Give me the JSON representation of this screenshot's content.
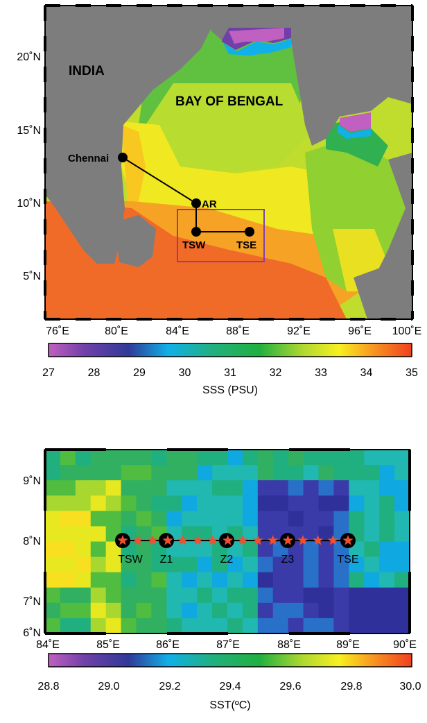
{
  "map1": {
    "place_labels": {
      "india": "INDIA",
      "bay": "BAY OF BENGAL",
      "chennai": "Chennai",
      "ar": "AR",
      "tsw": "TSW",
      "tse": "TSE"
    },
    "x_ticks": [
      "76˚E",
      "80˚E",
      "84˚E",
      "88˚E",
      "92˚E",
      "96˚E",
      "100˚E"
    ],
    "y_ticks": [
      "20˚N",
      "15˚N",
      "10˚N",
      "5˚N"
    ],
    "colorbar": {
      "label": "SSS (PSU)",
      "ticks": [
        "27",
        "28",
        "29",
        "30",
        "31",
        "32",
        "33",
        "34",
        "35"
      ]
    },
    "colors": {
      "land": "#7d7d7d",
      "box": "#8040b0",
      "track": "#000000"
    }
  },
  "map2": {
    "x_ticks": [
      "84˚E",
      "85˚E",
      "86˚E",
      "87˚E",
      "88˚E",
      "89˚E",
      "90˚E"
    ],
    "y_ticks": [
      "9˚N",
      "8˚N",
      "7˚N",
      "6˚N"
    ],
    "station_labels": [
      "TSW",
      "Z1",
      "Z2",
      "Z3",
      "TSE"
    ],
    "colorbar": {
      "label": "SST(ºC)",
      "ticks": [
        "28.8",
        "29.0",
        "29.2",
        "29.4",
        "29.6",
        "29.8",
        "30.0"
      ]
    },
    "colors": {
      "star": "#f05030",
      "station": "#000000"
    }
  }
}
